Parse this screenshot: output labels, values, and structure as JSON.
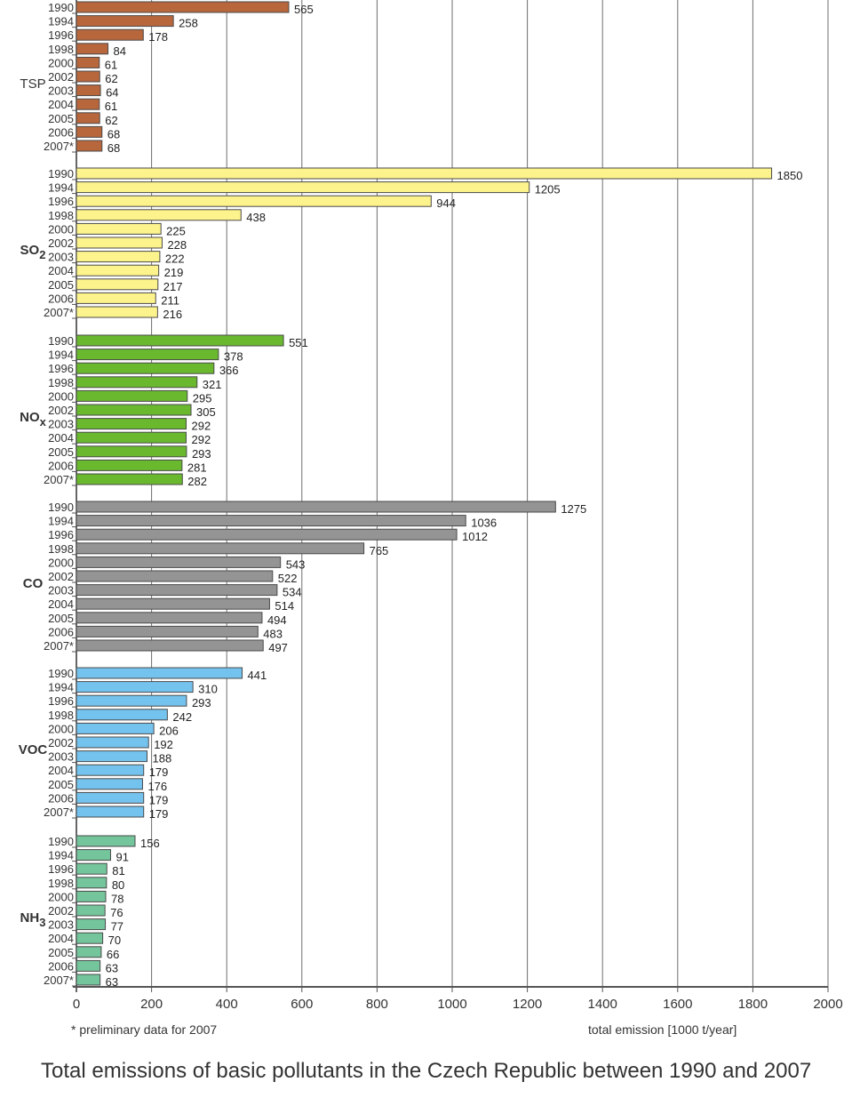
{
  "chart_data": {
    "type": "bar",
    "orientation": "horizontal",
    "title": "Total emissions of basic pollutants in the Czech Republic between 1990 and 2007",
    "xlabel": "total emission [1000 t/year]",
    "footnote": "* preliminary data for 2007",
    "xlim": [
      0,
      2000
    ],
    "xticks": [
      "0",
      "200",
      "400",
      "600",
      "800",
      "1000",
      "1200",
      "1400",
      "1600",
      "1800",
      "2000"
    ],
    "grid": true,
    "categories": [
      "1990",
      "1994",
      "1996",
      "1998",
      "2000",
      "2002",
      "2003",
      "2004",
      "2005",
      "2006",
      "2007*"
    ],
    "series": [
      {
        "name": "TSP",
        "label_main": "TSP",
        "label_sub": "",
        "color": "#b8663c",
        "values": [
          565,
          258,
          178,
          84,
          61,
          62,
          64,
          61,
          62,
          68,
          68
        ]
      },
      {
        "name": "SO2",
        "label_main": "SO",
        "label_sub": "2",
        "color": "#fdf38c",
        "values": [
          1850,
          1205,
          944,
          438,
          225,
          228,
          222,
          219,
          217,
          211,
          216
        ]
      },
      {
        "name": "NOx",
        "label_main": "NO",
        "label_sub": "x",
        "color": "#69b82e",
        "values": [
          551,
          378,
          366,
          321,
          295,
          305,
          292,
          292,
          293,
          281,
          282
        ]
      },
      {
        "name": "CO",
        "label_main": "CO",
        "label_sub": "",
        "color": "#959494",
        "values": [
          1275,
          1036,
          1012,
          765,
          543,
          522,
          534,
          514,
          494,
          483,
          497
        ]
      },
      {
        "name": "VOC",
        "label_main": "VOC",
        "label_sub": "",
        "color": "#74c2ee",
        "values": [
          441,
          310,
          293,
          242,
          206,
          192,
          188,
          179,
          176,
          179,
          179
        ]
      },
      {
        "name": "NH3",
        "label_main": "NH",
        "label_sub": "3",
        "color": "#74c49c",
        "values": [
          156,
          91,
          81,
          80,
          78,
          76,
          77,
          70,
          66,
          63,
          63
        ]
      }
    ]
  }
}
